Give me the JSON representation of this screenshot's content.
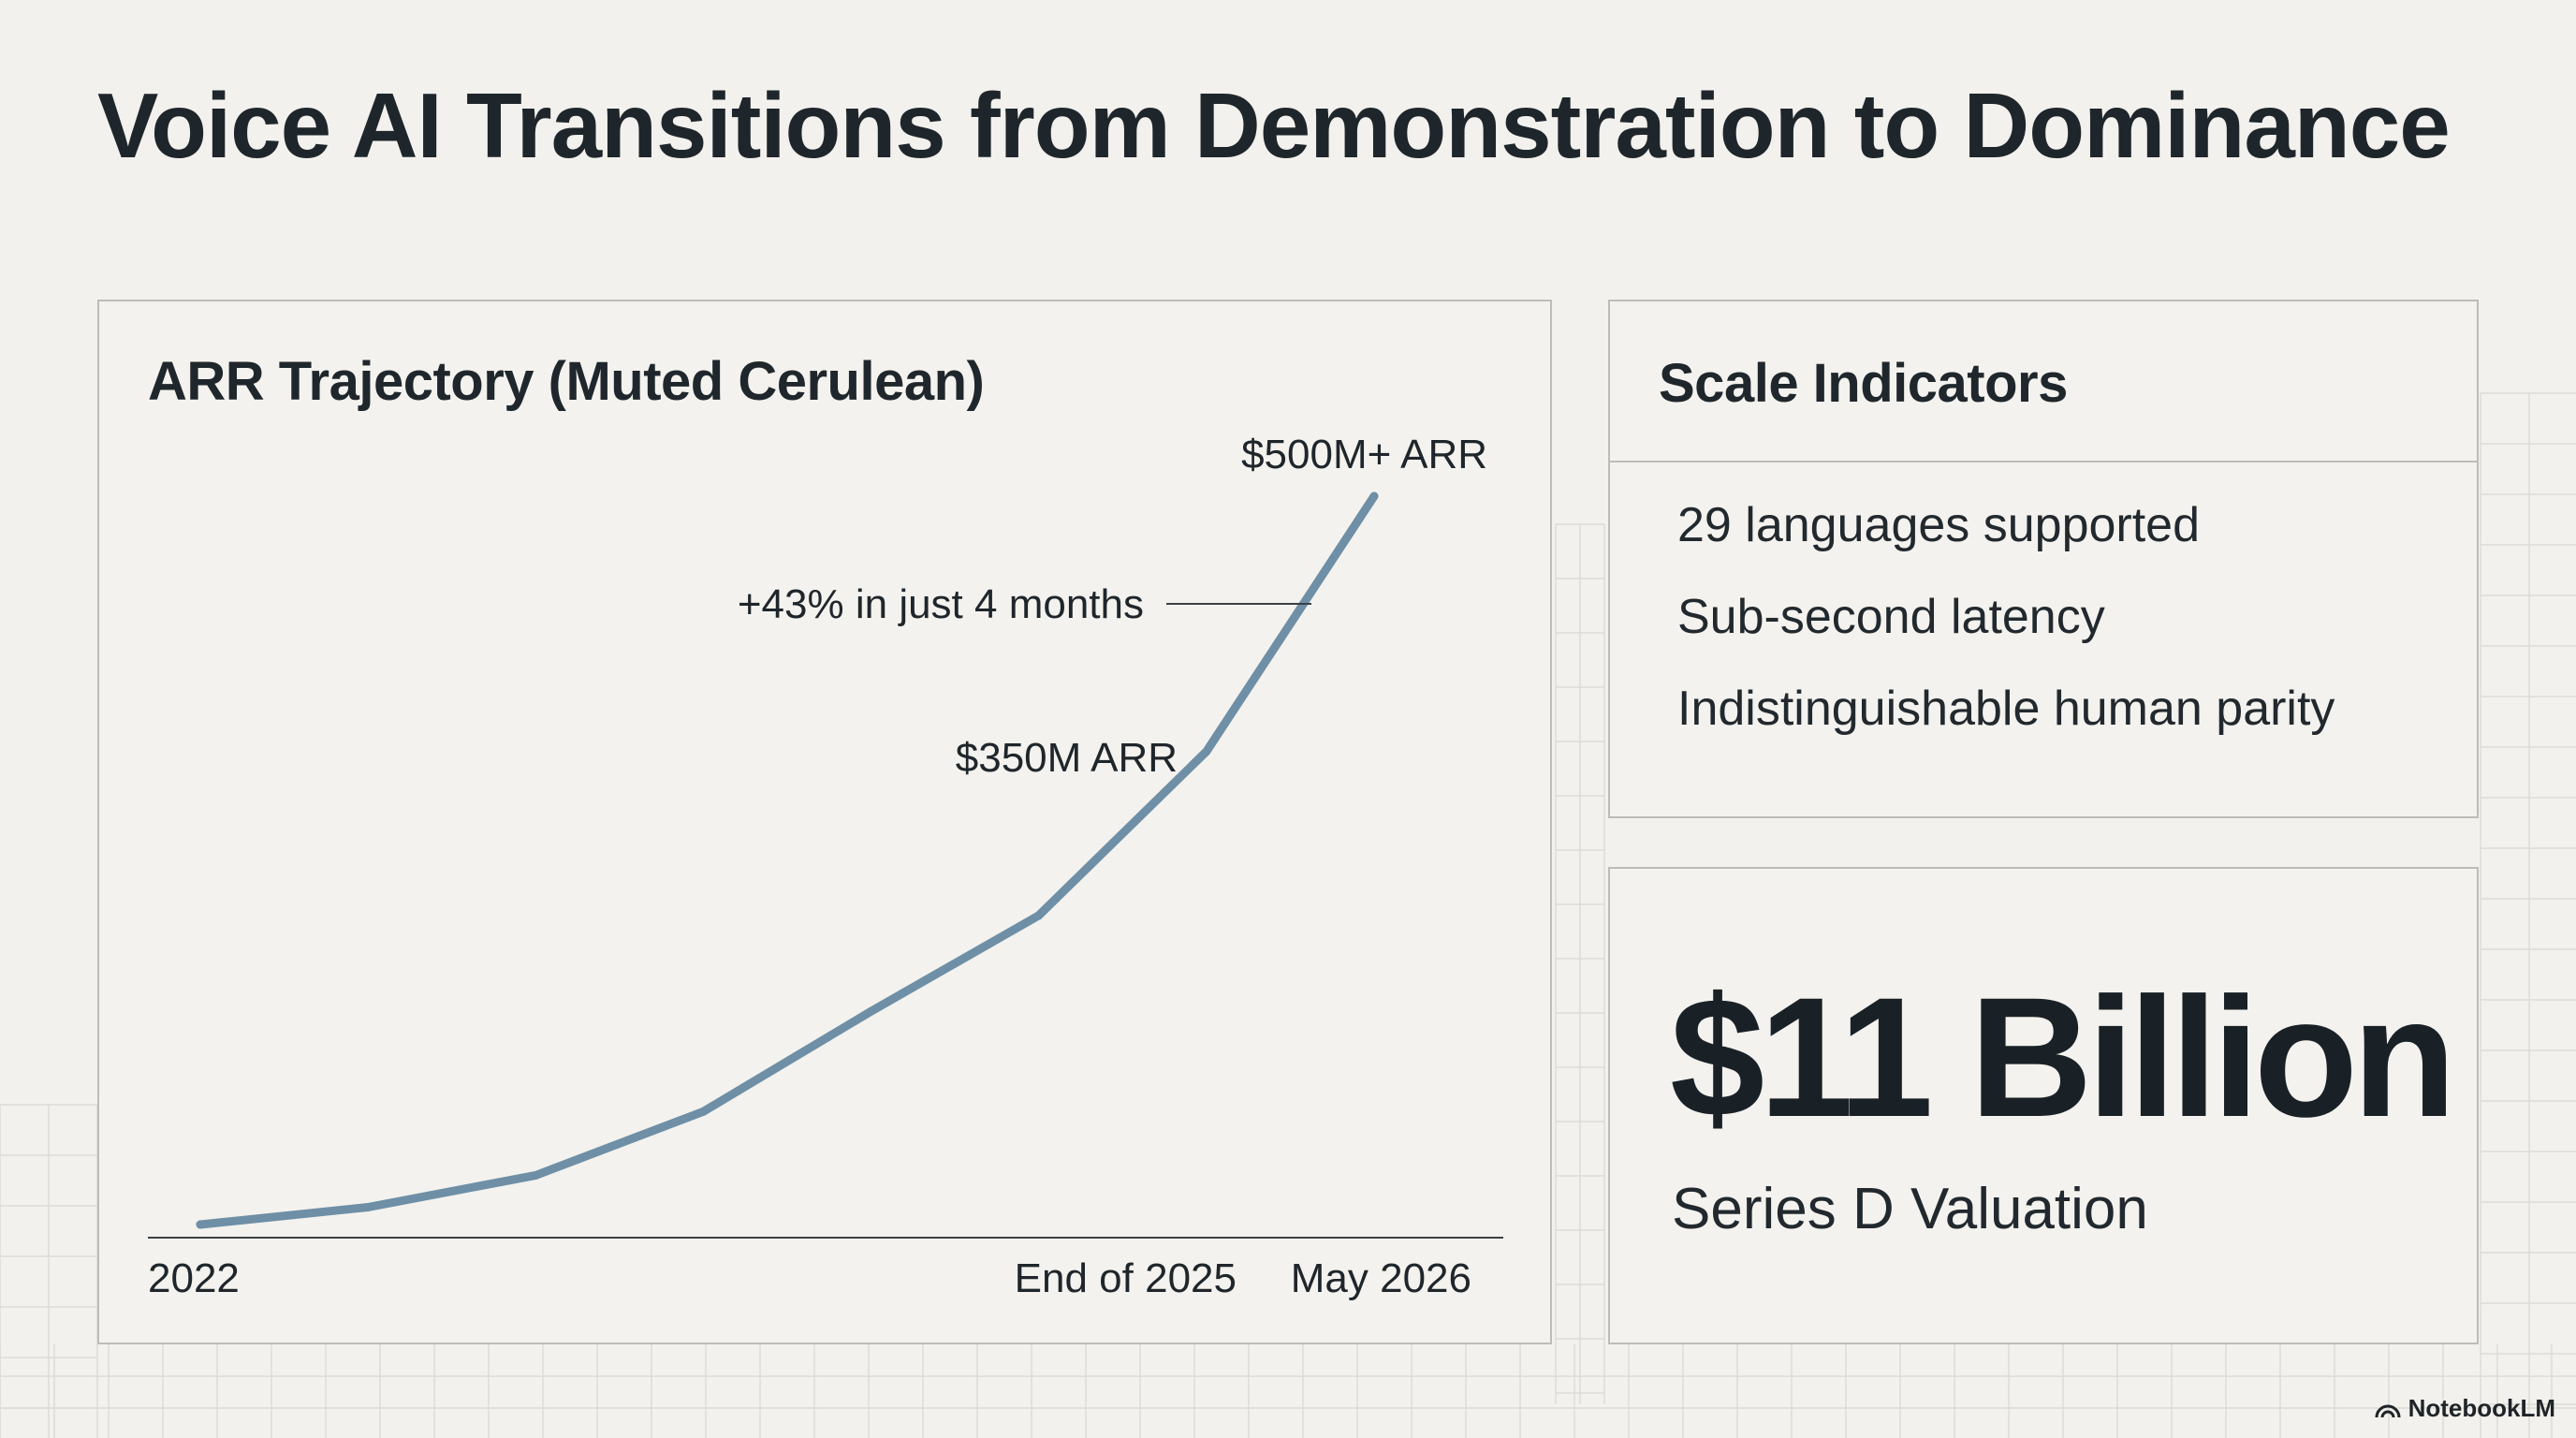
{
  "slide": {
    "title": "Voice AI Transitions from Demonstration to Dominance"
  },
  "chart_data": {
    "type": "line",
    "title": "ARR Trajectory (Muted Cerulean)",
    "x_tick_labels": [
      "2022",
      "End of 2025",
      "May 2026"
    ],
    "series": [
      {
        "values": [
          1,
          20,
          55,
          125,
          235,
          340,
          520,
          800
        ]
      }
    ],
    "annotations": {
      "end_of_2025_label": "$350M ARR",
      "may_2026_label": "$500M+ ARR",
      "growth_callout": "+43% in just 4 months"
    },
    "line_color": "#6e8fa6",
    "grid": false,
    "legend": "none"
  },
  "scale_indicators": {
    "title": "Scale Indicators",
    "items": [
      "29 languages supported",
      "Sub-second latency",
      "Indistinguishable human parity"
    ]
  },
  "valuation": {
    "value": "$11 Billion",
    "label": "Series D Valuation"
  },
  "brand": {
    "name": "NotebookLM",
    "icon": "notebooklm-logo-icon"
  }
}
